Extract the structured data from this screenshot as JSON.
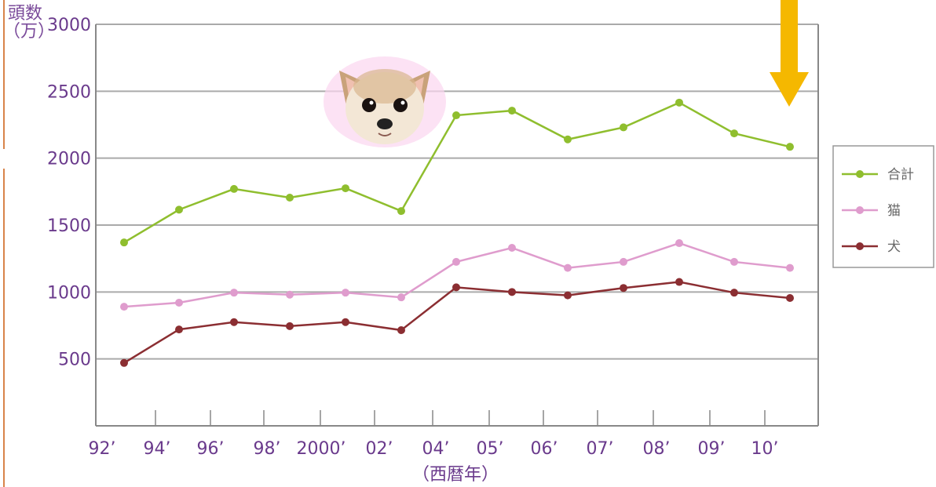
{
  "chart_data": {
    "type": "line",
    "ylabel": "頭数（万）",
    "xlabel": "（西暦年）",
    "ylim": [
      0,
      3000
    ],
    "yticks": [
      500,
      1000,
      1500,
      2000,
      2500,
      3000
    ],
    "xticks": [
      "92’",
      "94’",
      "96’",
      "98’",
      "2000’",
      "02’",
      "04’",
      "05’",
      "06’",
      "07’",
      "08’",
      "09’",
      "10’"
    ],
    "x": [
      1993,
      1995,
      1997,
      1999,
      2001,
      2003,
      2004.5,
      2005.5,
      2006.5,
      2007.5,
      2008.5,
      2009.5,
      2010.5
    ],
    "grid": true,
    "legend": "right",
    "series": [
      {
        "name": "合計",
        "color": "#8fbe2e",
        "values": [
          1370,
          1615,
          1770,
          1705,
          1775,
          1605,
          2320,
          2355,
          2140,
          2230,
          2415,
          2185,
          2085
        ]
      },
      {
        "name": "猫",
        "color": "#df9ccd",
        "values": [
          890,
          920,
          995,
          980,
          995,
          960,
          1225,
          1330,
          1180,
          1225,
          1365,
          1225,
          1180
        ]
      },
      {
        "name": "犬",
        "color": "#8b2e32",
        "values": [
          470,
          720,
          775,
          745,
          775,
          715,
          1035,
          1000,
          975,
          1030,
          1075,
          995,
          955
        ]
      }
    ]
  },
  "decor": {
    "dog_icon": "chihuahua-head-icon",
    "arrow_icon": "down-arrow-icon",
    "arrow_color": "#f5b800"
  }
}
